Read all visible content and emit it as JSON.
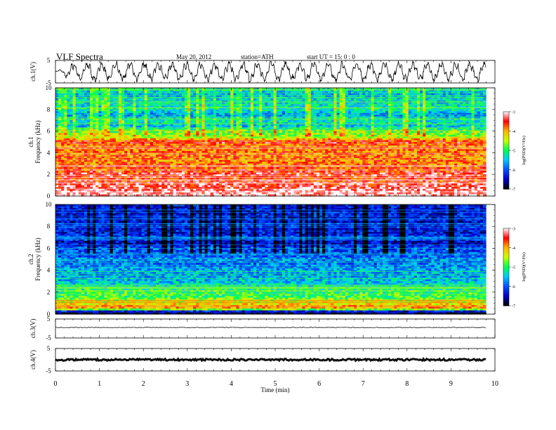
{
  "header": {
    "title": "VLF  Spectra",
    "date": "May 20, 2012",
    "station": "station=ATH",
    "start": "start  UT  =    15: 0   : 0"
  },
  "colorbar": {
    "ticks": [
      "-3",
      "-4",
      "-5",
      "-6",
      "-7"
    ],
    "label": "log(PSD)(V²/Hz)",
    "colors": [
      "#000000",
      "#0000c8",
      "#0050ff",
      "#00c8ff",
      "#00ff50",
      "#c8ff00",
      "#ffb400",
      "#ff0000",
      "#ffffff"
    ]
  },
  "chart_data": [
    {
      "type": "line",
      "name": "ch.1 waveform",
      "ylabel": "ch.1(V)",
      "ylim": [
        -5,
        5
      ],
      "yticks": [
        "5",
        "-5"
      ],
      "xlim": [
        0,
        10
      ],
      "data_extent_min": 9.8,
      "description_values": "oscillating signal, amplitude roughly -4 to +4 V"
    },
    {
      "type": "heatmap",
      "name": "ch.1 spectrogram",
      "ylabel": "ch.1\nFrequency  (kHz)",
      "ylabel_lines": [
        "ch.1",
        "Frequency  (kHz)"
      ],
      "ylim": [
        0,
        10
      ],
      "yticks": [
        "0",
        "2",
        "4",
        "6",
        "8",
        "10"
      ],
      "xlim": [
        0,
        10
      ],
      "clim": [
        -7,
        -3
      ],
      "band_profile_khz": [
        {
          "f": 0.3,
          "v": -3.2
        },
        {
          "f": 0.8,
          "v": -3.3
        },
        {
          "f": 1.5,
          "v": -3.6
        },
        {
          "f": 2.0,
          "v": -3.4
        },
        {
          "f": 2.5,
          "v": -3.7
        },
        {
          "f": 3.0,
          "v": -3.8
        },
        {
          "f": 3.5,
          "v": -3.9
        },
        {
          "f": 4.0,
          "v": -3.8
        },
        {
          "f": 4.5,
          "v": -3.9
        },
        {
          "f": 5.0,
          "v": -3.5
        },
        {
          "f": 5.5,
          "v": -4.6
        },
        {
          "f": 6.0,
          "v": -4.8
        },
        {
          "f": 6.5,
          "v": -5.6
        },
        {
          "f": 7.0,
          "v": -5.2
        },
        {
          "f": 7.5,
          "v": -5.8
        },
        {
          "f": 8.0,
          "v": -5.2
        },
        {
          "f": 8.5,
          "v": -5.4
        },
        {
          "f": 9.0,
          "v": -5.5
        },
        {
          "f": 9.5,
          "v": -5.6
        },
        {
          "f": 10.0,
          "v": -5.3
        }
      ]
    },
    {
      "type": "heatmap",
      "name": "ch.2 spectrogram",
      "ylabel": "ch.2\nFrequency  (kHz)",
      "ylabel_lines": [
        "ch.2",
        "Frequency  (kHz)"
      ],
      "ylim": [
        0,
        10
      ],
      "yticks": [
        "0",
        "2",
        "4",
        "6",
        "8",
        "10"
      ],
      "xlim": [
        0,
        10
      ],
      "clim": [
        -7,
        -3
      ],
      "band_profile_khz": [
        {
          "f": 0.2,
          "v": -6.8
        },
        {
          "f": 0.5,
          "v": -3.9
        },
        {
          "f": 1.0,
          "v": -4.3
        },
        {
          "f": 1.5,
          "v": -4.9
        },
        {
          "f": 2.0,
          "v": -5.0
        },
        {
          "f": 2.5,
          "v": -5.3
        },
        {
          "f": 3.0,
          "v": -5.5
        },
        {
          "f": 3.5,
          "v": -5.7
        },
        {
          "f": 4.0,
          "v": -5.6
        },
        {
          "f": 4.5,
          "v": -5.9
        },
        {
          "f": 5.0,
          "v": -5.8
        },
        {
          "f": 5.5,
          "v": -6.1
        },
        {
          "f": 6.0,
          "v": -6.0
        },
        {
          "f": 6.5,
          "v": -6.5
        },
        {
          "f": 7.0,
          "v": -6.1
        },
        {
          "f": 7.5,
          "v": -6.4
        },
        {
          "f": 8.0,
          "v": -6.2
        },
        {
          "f": 8.5,
          "v": -6.4
        },
        {
          "f": 9.0,
          "v": -6.3
        },
        {
          "f": 9.5,
          "v": -6.4
        },
        {
          "f": 10.0,
          "v": -6.3
        }
      ]
    },
    {
      "type": "line",
      "name": "ch.3 waveform",
      "ylabel": "ch.3(V)",
      "ylim": [
        -5,
        5
      ],
      "yticks": [
        "5",
        "-5"
      ],
      "xlim": [
        0,
        10
      ],
      "level_v": 0.5
    },
    {
      "type": "line",
      "name": "ch.4 waveform",
      "ylabel": "ch.4(V)",
      "ylim": [
        -5,
        5
      ],
      "yticks": [
        "5",
        "-5"
      ],
      "xlim": [
        0,
        10
      ],
      "level_v": 0.0
    }
  ],
  "xaxis": {
    "label": "Time  (min)",
    "ticks": [
      "0",
      "1",
      "2",
      "3",
      "4",
      "5",
      "6",
      "7",
      "8",
      "9",
      "10"
    ]
  }
}
